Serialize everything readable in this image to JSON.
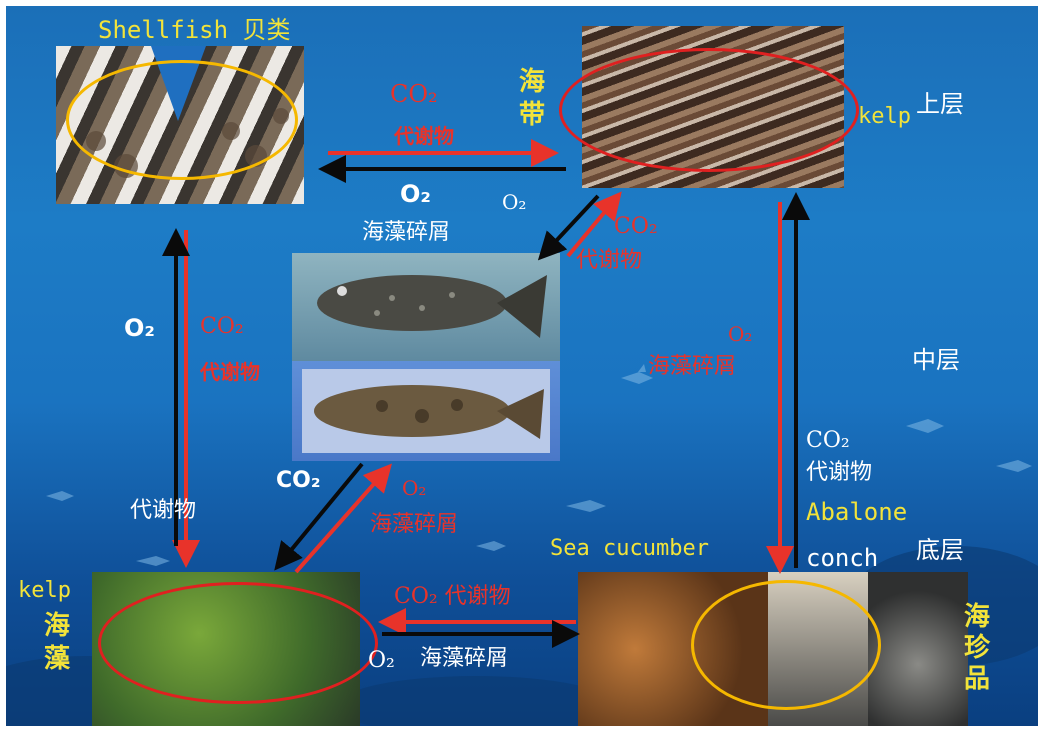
{
  "colors": {
    "ocean_top": "#1b6fb8",
    "ocean_bottom": "#0a3f80",
    "arrow_red": "#e8332a",
    "arrow_black": "#0a0a0a",
    "label_yellow": "#f2e33a",
    "ring_yellow": "#f5b800",
    "ring_red": "#e02020"
  },
  "nodes": {
    "shellfish": {
      "title": "Shellfish 贝类"
    },
    "kelp_top": {
      "en": "kelp",
      "cn": "海带"
    },
    "seaweed": {
      "en": "kelp",
      "cn": "海藻"
    },
    "sea_treasure": {
      "cn": "海珍品",
      "en_1": "Sea cucumber",
      "en_2": "Abalone",
      "en_3": "conch"
    }
  },
  "layers": {
    "upper": "上层",
    "middle": "中层",
    "bottom": "底层"
  },
  "flows": {
    "shell_kelp_co2": "CO₂",
    "shell_kelp_metab": "代谢物",
    "kelp_shell_o2": "O₂",
    "kelp_o2_small": "O₂",
    "kelp_shell_detritus": "海藻碎屑",
    "fish_kelp_co2": "CO₂",
    "fish_kelp_metab": "代谢物",
    "shell_down_o2": "O₂",
    "shell_down_co2": "CO₂",
    "shell_down_metab": "代谢物",
    "seaweed_up_metab": "代谢物",
    "kelp_down_o2": "O₂",
    "kelp_down_detritus": "海藻碎屑",
    "bottom_up_co2": "CO₂",
    "bottom_up_metab": "代谢物",
    "fish_seaweed_co2": "CO₂",
    "seaweed_fish_o2": "O₂",
    "seaweed_fish_detritus": "海藻碎屑",
    "treasure_seaweed": "CO₂ 代谢物",
    "seaweed_treasure_o2": "O₂",
    "seaweed_treasure_detritus": "海藻碎屑"
  }
}
